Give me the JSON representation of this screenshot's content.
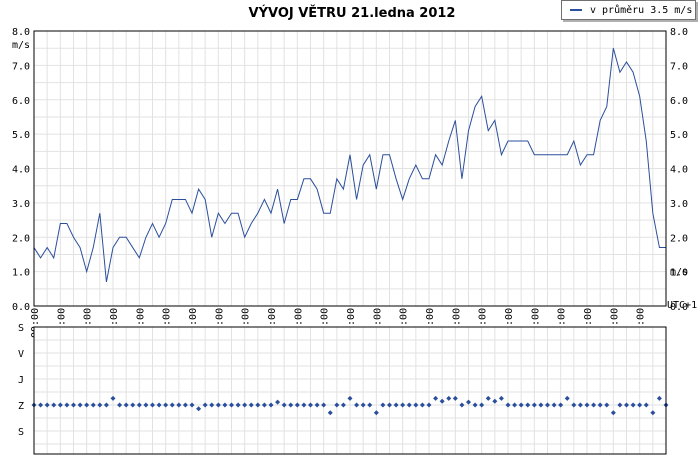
{
  "chart_data": [
    {
      "type": "line",
      "title": "VÝVOJ VĚTRU  21.ledna 2012",
      "ylabel": "m/s",
      "xlabel": "UTC+1",
      "ylim": [
        0,
        8
      ],
      "y_ticks": [
        "0.0",
        "1.0",
        "2.0",
        "3.0",
        "4.0",
        "5.0",
        "6.0",
        "7.0",
        "8.0"
      ],
      "x_ticks": [
        "00:00",
        "01:00",
        "02:00",
        "03:00",
        "04:00",
        "05:00",
        "06:00",
        "07:00",
        "08:00",
        "09:00",
        "10:00",
        "11:00",
        "12:00",
        "13:00",
        "14:00",
        "15:00",
        "16:00",
        "17:00",
        "18:00",
        "19:00",
        "20:00",
        "21:00",
        "22:00",
        "23:00"
      ],
      "xlim_hours": [
        0,
        24
      ],
      "grid": true,
      "legend": "top-right",
      "series": [
        {
          "name": "v průměru 3.5 m/s",
          "color": "#2b4f9c",
          "x": [
            0.0,
            0.25,
            0.5,
            0.75,
            1.0,
            1.25,
            1.5,
            1.75,
            2.0,
            2.25,
            2.5,
            2.75,
            3.0,
            3.25,
            3.5,
            3.75,
            4.0,
            4.25,
            4.5,
            4.75,
            5.0,
            5.25,
            5.5,
            5.75,
            6.0,
            6.25,
            6.5,
            6.75,
            7.0,
            7.25,
            7.5,
            7.75,
            8.0,
            8.25,
            8.5,
            8.75,
            9.0,
            9.25,
            9.5,
            9.75,
            10.0,
            10.25,
            10.5,
            10.75,
            11.0,
            11.25,
            11.5,
            11.75,
            12.0,
            12.25,
            12.5,
            12.75,
            13.0,
            13.25,
            13.5,
            13.75,
            14.0,
            14.25,
            14.5,
            14.75,
            15.0,
            15.25,
            15.5,
            15.75,
            16.0,
            16.25,
            16.5,
            16.75,
            17.0,
            17.25,
            17.5,
            17.75,
            18.0,
            18.25,
            18.5,
            18.75,
            19.0,
            19.25,
            19.5,
            19.75,
            20.0,
            20.25,
            20.5,
            20.75,
            21.0,
            21.25,
            21.5,
            21.75,
            22.0,
            22.25,
            22.5,
            22.75,
            23.0,
            23.25,
            23.5,
            23.75,
            24.0
          ],
          "values": [
            1.7,
            1.4,
            1.7,
            1.4,
            2.4,
            2.4,
            2.0,
            1.7,
            1.0,
            1.7,
            2.7,
            0.7,
            1.7,
            2.0,
            2.0,
            1.7,
            1.4,
            2.0,
            2.4,
            2.0,
            2.4,
            3.1,
            3.1,
            3.1,
            2.7,
            3.4,
            3.1,
            2.0,
            2.7,
            2.4,
            2.7,
            2.7,
            2.0,
            2.4,
            2.7,
            3.1,
            2.7,
            3.4,
            2.4,
            3.1,
            3.1,
            3.7,
            3.7,
            3.4,
            2.7,
            2.7,
            3.7,
            3.4,
            4.4,
            3.1,
            4.1,
            4.4,
            3.4,
            4.4,
            4.4,
            3.7,
            3.1,
            3.7,
            4.1,
            3.7,
            3.7,
            4.4,
            4.1,
            4.8,
            5.4,
            3.7,
            5.1,
            5.8,
            6.1,
            5.1,
            5.4,
            4.4,
            4.8,
            4.8,
            4.8,
            4.8,
            4.4,
            4.4,
            4.4,
            4.4,
            4.4,
            4.4,
            4.8,
            4.1,
            4.4,
            4.4,
            5.4,
            5.8,
            7.5,
            6.8,
            7.1,
            6.8,
            6.1,
            4.8,
            2.7,
            1.7,
            1.7
          ]
        }
      ]
    },
    {
      "type": "scatter",
      "y_categories": [
        "S",
        "V",
        "J",
        "Z",
        "S"
      ],
      "x_ticks": [],
      "xlim_hours": [
        0,
        24
      ],
      "grid": true,
      "series": [
        {
          "name": "",
          "color": "#2b4f9c",
          "x": [
            0.0,
            0.25,
            0.5,
            0.75,
            1.0,
            1.25,
            1.5,
            1.75,
            2.0,
            2.25,
            2.5,
            2.75,
            3.0,
            3.25,
            3.5,
            3.75,
            4.0,
            4.25,
            4.5,
            4.75,
            5.0,
            5.25,
            5.5,
            5.75,
            6.0,
            6.25,
            6.5,
            6.75,
            7.0,
            7.25,
            7.5,
            7.75,
            8.0,
            8.25,
            8.5,
            8.75,
            9.0,
            9.25,
            9.5,
            9.75,
            10.0,
            10.25,
            10.5,
            10.75,
            11.0,
            11.25,
            11.5,
            11.75,
            12.0,
            12.25,
            12.5,
            12.75,
            13.0,
            13.25,
            13.5,
            13.75,
            14.0,
            14.25,
            14.5,
            14.75,
            15.0,
            15.25,
            15.5,
            15.75,
            16.0,
            16.25,
            16.5,
            16.75,
            17.0,
            17.25,
            17.5,
            17.75,
            18.0,
            18.25,
            18.5,
            18.75,
            19.0,
            19.25,
            19.5,
            19.75,
            20.0,
            20.25,
            20.5,
            20.75,
            21.0,
            21.25,
            21.5,
            21.75,
            22.0,
            22.25,
            22.5,
            22.75,
            23.0,
            23.25,
            23.5,
            23.75,
            24.0
          ],
          "values_deg": [
            270,
            270,
            270,
            270,
            270,
            270,
            270,
            270,
            270,
            270,
            270,
            270,
            247,
            270,
            270,
            270,
            270,
            270,
            270,
            270,
            270,
            270,
            270,
            270,
            270,
            283,
            270,
            270,
            270,
            270,
            270,
            270,
            270,
            270,
            270,
            270,
            270,
            260,
            270,
            270,
            270,
            270,
            270,
            270,
            270,
            297,
            270,
            270,
            247,
            270,
            270,
            270,
            297,
            270,
            270,
            270,
            270,
            270,
            270,
            270,
            270,
            247,
            257,
            247,
            247,
            270,
            260,
            270,
            270,
            247,
            257,
            247,
            270,
            270,
            270,
            270,
            270,
            270,
            270,
            270,
            270,
            247,
            270,
            270,
            270,
            270,
            270,
            270,
            297,
            270,
            270,
            270,
            270,
            270,
            297,
            247,
            270
          ]
        }
      ]
    }
  ]
}
